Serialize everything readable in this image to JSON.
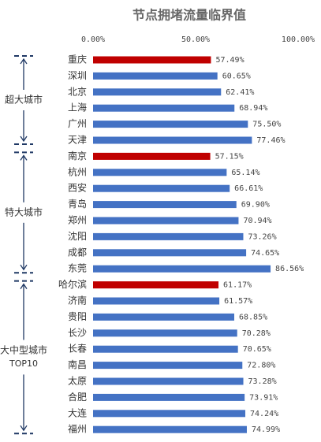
{
  "chart_data": {
    "type": "bar",
    "orientation": "horizontal",
    "title": "节点拥堵流量临界值",
    "categories": [
      "重庆",
      "深圳",
      "北京",
      "上海",
      "广州",
      "天津",
      "南京",
      "杭州",
      "西安",
      "青岛",
      "郑州",
      "沈阳",
      "成都",
      "东莞",
      "哈尔滨",
      "济南",
      "贵阳",
      "长沙",
      "长春",
      "南昌",
      "太原",
      "合肥",
      "大连",
      "福州"
    ],
    "values": [
      57.49,
      60.65,
      62.41,
      68.94,
      75.5,
      77.46,
      57.15,
      65.14,
      66.61,
      69.9,
      70.94,
      73.26,
      74.65,
      86.56,
      61.17,
      61.57,
      68.85,
      70.28,
      70.65,
      72.8,
      73.28,
      73.91,
      74.24,
      74.99
    ],
    "value_labels": [
      "57.49%",
      "60.65%",
      "62.41%",
      "68.94%",
      "75.50%",
      "77.46%",
      "57.15%",
      "65.14%",
      "66.61%",
      "69.90%",
      "70.94%",
      "73.26%",
      "74.65%",
      "86.56%",
      "61.17%",
      "61.57%",
      "68.85%",
      "70.28%",
      "70.65%",
      "72.80%",
      "73.28%",
      "73.91%",
      "74.24%",
      "74.99%"
    ],
    "colors": [
      "#c00000",
      "#4472c4",
      "#4472c4",
      "#4472c4",
      "#4472c4",
      "#4472c4",
      "#c00000",
      "#4472c4",
      "#4472c4",
      "#4472c4",
      "#4472c4",
      "#4472c4",
      "#4472c4",
      "#4472c4",
      "#c00000",
      "#4472c4",
      "#4472c4",
      "#4472c4",
      "#4472c4",
      "#4472c4",
      "#4472c4",
      "#4472c4",
      "#4472c4",
      "#4472c4"
    ],
    "xlim": [
      0,
      100
    ],
    "xticks": [
      {
        "value": 0,
        "label": "0.00%"
      },
      {
        "value": 50,
        "label": "50.00%"
      },
      {
        "value": 100,
        "label": "100.00%"
      }
    ],
    "groups": [
      {
        "label": [
          "超大城市"
        ],
        "categories": [
          "重庆",
          "天津"
        ]
      },
      {
        "label": [
          "特大城市"
        ],
        "categories": [
          "南京",
          "东莞"
        ]
      },
      {
        "label": [
          "大中型城市",
          "TOP10"
        ],
        "categories": [
          "哈尔滨",
          "福州"
        ]
      }
    ]
  }
}
